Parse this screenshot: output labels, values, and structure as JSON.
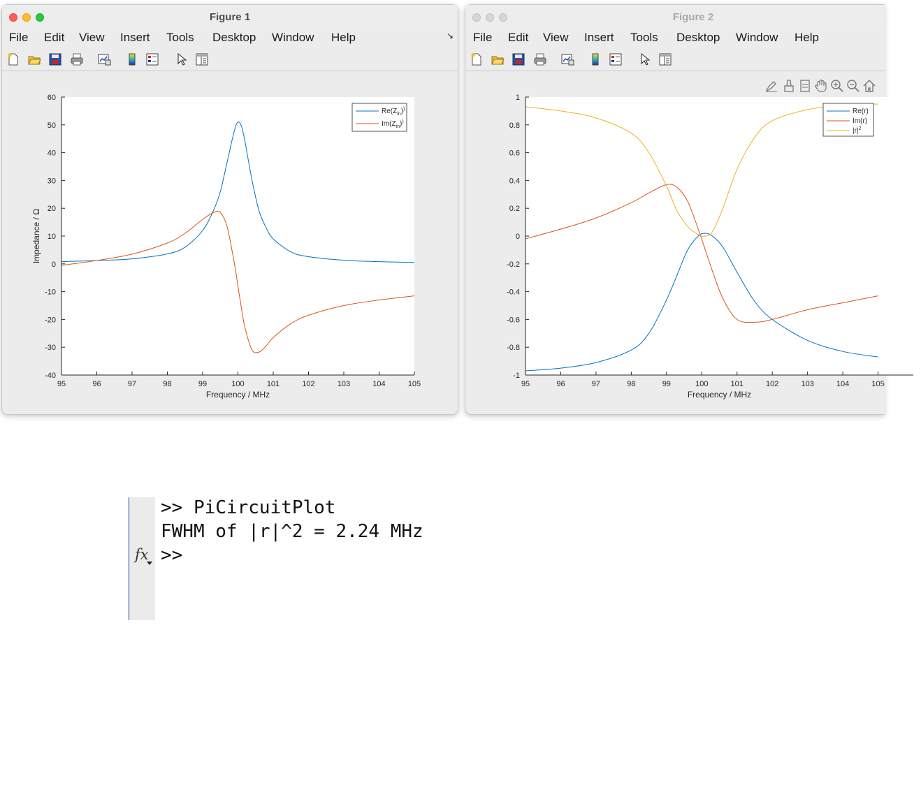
{
  "windows": [
    {
      "title": "Figure 1",
      "menu": [
        "File",
        "Edit",
        "View",
        "Insert",
        "Tools",
        "Desktop",
        "Window",
        "Help"
      ],
      "dock_icon": "dock-arrow-icon",
      "toolbar_icons": [
        "new-figure-icon",
        "open-file-icon",
        "save-icon",
        "print-icon",
        "link-plot-icon",
        "colorbar-icon",
        "legend-icon",
        "pointer-icon",
        "property-inspector-icon"
      ]
    },
    {
      "title": "Figure 2",
      "menu": [
        "File",
        "Edit",
        "View",
        "Insert",
        "Tools",
        "Desktop",
        "Window",
        "Help"
      ],
      "toolbar_icons": [
        "new-figure-icon",
        "open-file-icon",
        "save-icon",
        "print-icon",
        "link-plot-icon",
        "colorbar-icon",
        "legend-icon",
        "pointer-icon",
        "property-inspector-icon"
      ],
      "axes_toolbar_icons": [
        "brush-icon",
        "data-tips-icon",
        "rotate-icon",
        "pan-icon",
        "zoom-in-icon",
        "zoom-out-icon",
        "home-icon"
      ]
    }
  ],
  "colors": {
    "blue": "#0072BD",
    "orange": "#D95319",
    "yellow": "#EDB120"
  },
  "chart_data": [
    {
      "type": "line",
      "title": "",
      "xlabel": "Frequency / MHz",
      "ylabel": "Impedance / Ω",
      "xlim": [
        95,
        105
      ],
      "ylim": [
        -40,
        60
      ],
      "xticks": [
        95,
        96,
        97,
        98,
        99,
        100,
        101,
        102,
        103,
        104,
        105
      ],
      "yticks": [
        -40,
        -30,
        -20,
        -10,
        0,
        10,
        20,
        30,
        40,
        50,
        60
      ],
      "legend_position": "top-right",
      "grid": false,
      "x": [
        95,
        96,
        97,
        98,
        98.5,
        99,
        99.3,
        99.5,
        99.7,
        99.9,
        100,
        100.1,
        100.2,
        100.4,
        100.6,
        100.8,
        101,
        101.5,
        102,
        103,
        104,
        105
      ],
      "series": [
        {
          "name": "Re(Z_in)",
          "legend": [
            "Re(Z",
            "in",
            ")"
          ],
          "color": "#0072BD",
          "values": [
            0.8,
            1.2,
            1.8,
            3.6,
            6,
            12,
            19,
            26,
            37,
            48,
            51,
            49.5,
            44,
            30,
            19,
            13,
            9,
            4.3,
            2.6,
            1.3,
            0.8,
            0.5
          ]
        },
        {
          "name": "Im(Z_in)",
          "legend": [
            "Im(Z",
            "in",
            ")"
          ],
          "color": "#D95319",
          "values": [
            -0.5,
            1.2,
            3.5,
            7.5,
            11,
            16,
            18.4,
            18.5,
            13,
            0,
            -8,
            -16,
            -23,
            -31,
            -31.7,
            -29.5,
            -26.5,
            -21.5,
            -18.5,
            -15,
            -13,
            -11.5
          ]
        }
      ]
    },
    {
      "type": "line",
      "title": "",
      "xlabel": "Frequency / MHz",
      "ylabel": "",
      "xlim": [
        95,
        106
      ],
      "ylim": [
        -1,
        1
      ],
      "xticks": [
        95,
        96,
        97,
        98,
        99,
        100,
        101,
        102,
        103,
        104,
        105
      ],
      "ytick_labels": [
        "-1",
        "-0.8",
        "-0.6",
        "-0.4",
        "-0.2",
        "0",
        "0.2",
        "0.4",
        "0.6",
        "0.8",
        "1"
      ],
      "yticks": [
        -1,
        -0.8,
        -0.6,
        -0.4,
        -0.2,
        0,
        0.2,
        0.4,
        0.6,
        0.8,
        1
      ],
      "legend_position": "top-right",
      "grid": false,
      "x": [
        95,
        96,
        97,
        98,
        98.5,
        99,
        99.3,
        99.6,
        99.9,
        100.1,
        100.3,
        100.6,
        101,
        101.5,
        102,
        103,
        104,
        105
      ],
      "series": [
        {
          "name": "Re(r)",
          "legend": [
            "Re(r)",
            "",
            ""
          ],
          "color": "#0072BD",
          "values": [
            -0.97,
            -0.95,
            -0.91,
            -0.82,
            -0.7,
            -0.46,
            -0.28,
            -0.1,
            0.0,
            0.02,
            0.0,
            -0.08,
            -0.26,
            -0.47,
            -0.6,
            -0.75,
            -0.83,
            -0.87
          ]
        },
        {
          "name": "Im(r)",
          "legend": [
            "Im(r)",
            "",
            ""
          ],
          "color": "#D95319",
          "values": [
            -0.02,
            0.05,
            0.13,
            0.24,
            0.31,
            0.37,
            0.35,
            0.25,
            0.05,
            -0.1,
            -0.25,
            -0.45,
            -0.6,
            -0.62,
            -0.6,
            -0.53,
            -0.48,
            -0.43
          ]
        },
        {
          "name": "|r|^2",
          "legend": [
            "|r|",
            "",
            "2"
          ],
          "color": "#EDB120",
          "values": [
            0.93,
            0.9,
            0.85,
            0.74,
            0.6,
            0.36,
            0.18,
            0.07,
            0.01,
            0.0,
            0.03,
            0.2,
            0.48,
            0.71,
            0.83,
            0.91,
            0.94,
            0.95
          ]
        }
      ]
    }
  ],
  "console": {
    "line1": ">> PiCircuitPlot",
    "line2": "FWHM of |r|^2 = 2.24 MHz",
    "line3": ">>",
    "fx_label": "fx"
  }
}
